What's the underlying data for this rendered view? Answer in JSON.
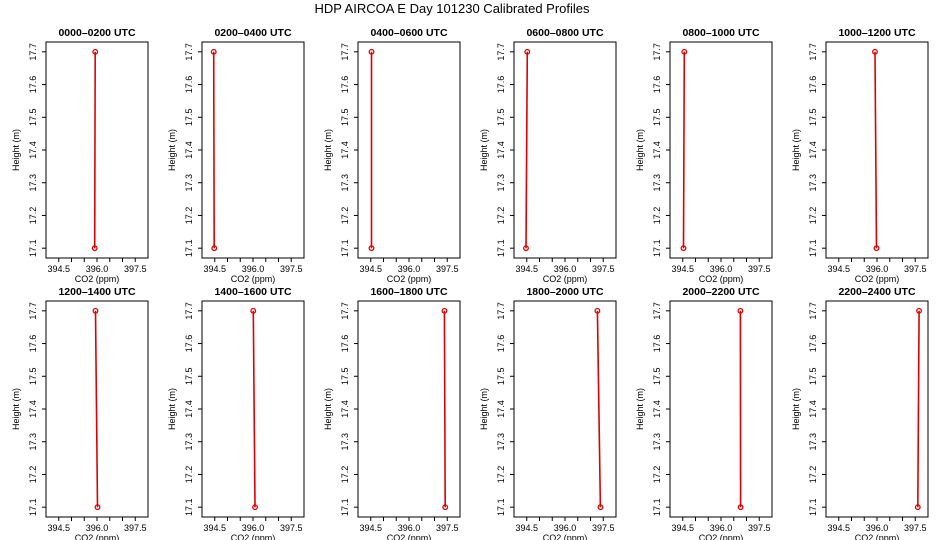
{
  "figure": {
    "title": "HDP AIRCOA E  Day 101230  Calibrated Profiles"
  },
  "chart_data": {
    "type": "line",
    "xlabel": "CO2 (ppm)",
    "ylabel": "Height (m)",
    "xlim": [
      394.0,
      398.0
    ],
    "ylim": [
      17.07,
      17.73
    ],
    "xticks": [
      394.5,
      395.0,
      395.5,
      396.0,
      396.5,
      397.0,
      397.5
    ],
    "xtick_labels": [
      "394.5",
      "",
      "",
      "396.0",
      "",
      "",
      "397.5"
    ],
    "yticks": [
      17.1,
      17.2,
      17.3,
      17.4,
      17.5,
      17.6,
      17.7
    ],
    "ytick_labels": [
      "17.1",
      "17.2",
      "17.3",
      "17.4",
      "17.5",
      "17.6",
      "17.7"
    ],
    "grid": false,
    "panels": [
      {
        "title": "0000–0200 UTC",
        "points": [
          [
            395.91,
            17.1
          ],
          [
            395.93,
            17.7
          ]
        ]
      },
      {
        "title": "0200–0400 UTC",
        "points": [
          [
            394.48,
            17.1
          ],
          [
            394.46,
            17.7
          ]
        ]
      },
      {
        "title": "0400–0600 UTC",
        "points": [
          [
            394.53,
            17.1
          ],
          [
            394.53,
            17.7
          ]
        ]
      },
      {
        "title": "0600–0800 UTC",
        "points": [
          [
            394.47,
            17.1
          ],
          [
            394.52,
            17.7
          ]
        ]
      },
      {
        "title": "0800–1000 UTC",
        "points": [
          [
            394.53,
            17.1
          ],
          [
            394.56,
            17.7
          ]
        ]
      },
      {
        "title": "1000–1200 UTC",
        "points": [
          [
            395.98,
            17.1
          ],
          [
            395.92,
            17.7
          ]
        ]
      },
      {
        "title": "1200–1400 UTC",
        "points": [
          [
            396.02,
            17.1
          ],
          [
            395.94,
            17.7
          ]
        ]
      },
      {
        "title": "1400–1600 UTC",
        "points": [
          [
            396.08,
            17.1
          ],
          [
            396.01,
            17.7
          ]
        ]
      },
      {
        "title": "1600–1800 UTC",
        "points": [
          [
            397.42,
            17.1
          ],
          [
            397.39,
            17.7
          ]
        ]
      },
      {
        "title": "1800–2000 UTC",
        "points": [
          [
            397.39,
            17.1
          ],
          [
            397.27,
            17.7
          ]
        ]
      },
      {
        "title": "2000–2200 UTC",
        "points": [
          [
            396.77,
            17.1
          ],
          [
            396.76,
            17.7
          ]
        ]
      },
      {
        "title": "2200–2400 UTC",
        "points": [
          [
            397.6,
            17.1
          ],
          [
            397.65,
            17.7
          ]
        ]
      }
    ]
  },
  "colors": {
    "profile": "#dd0000",
    "axes": "#000000"
  }
}
